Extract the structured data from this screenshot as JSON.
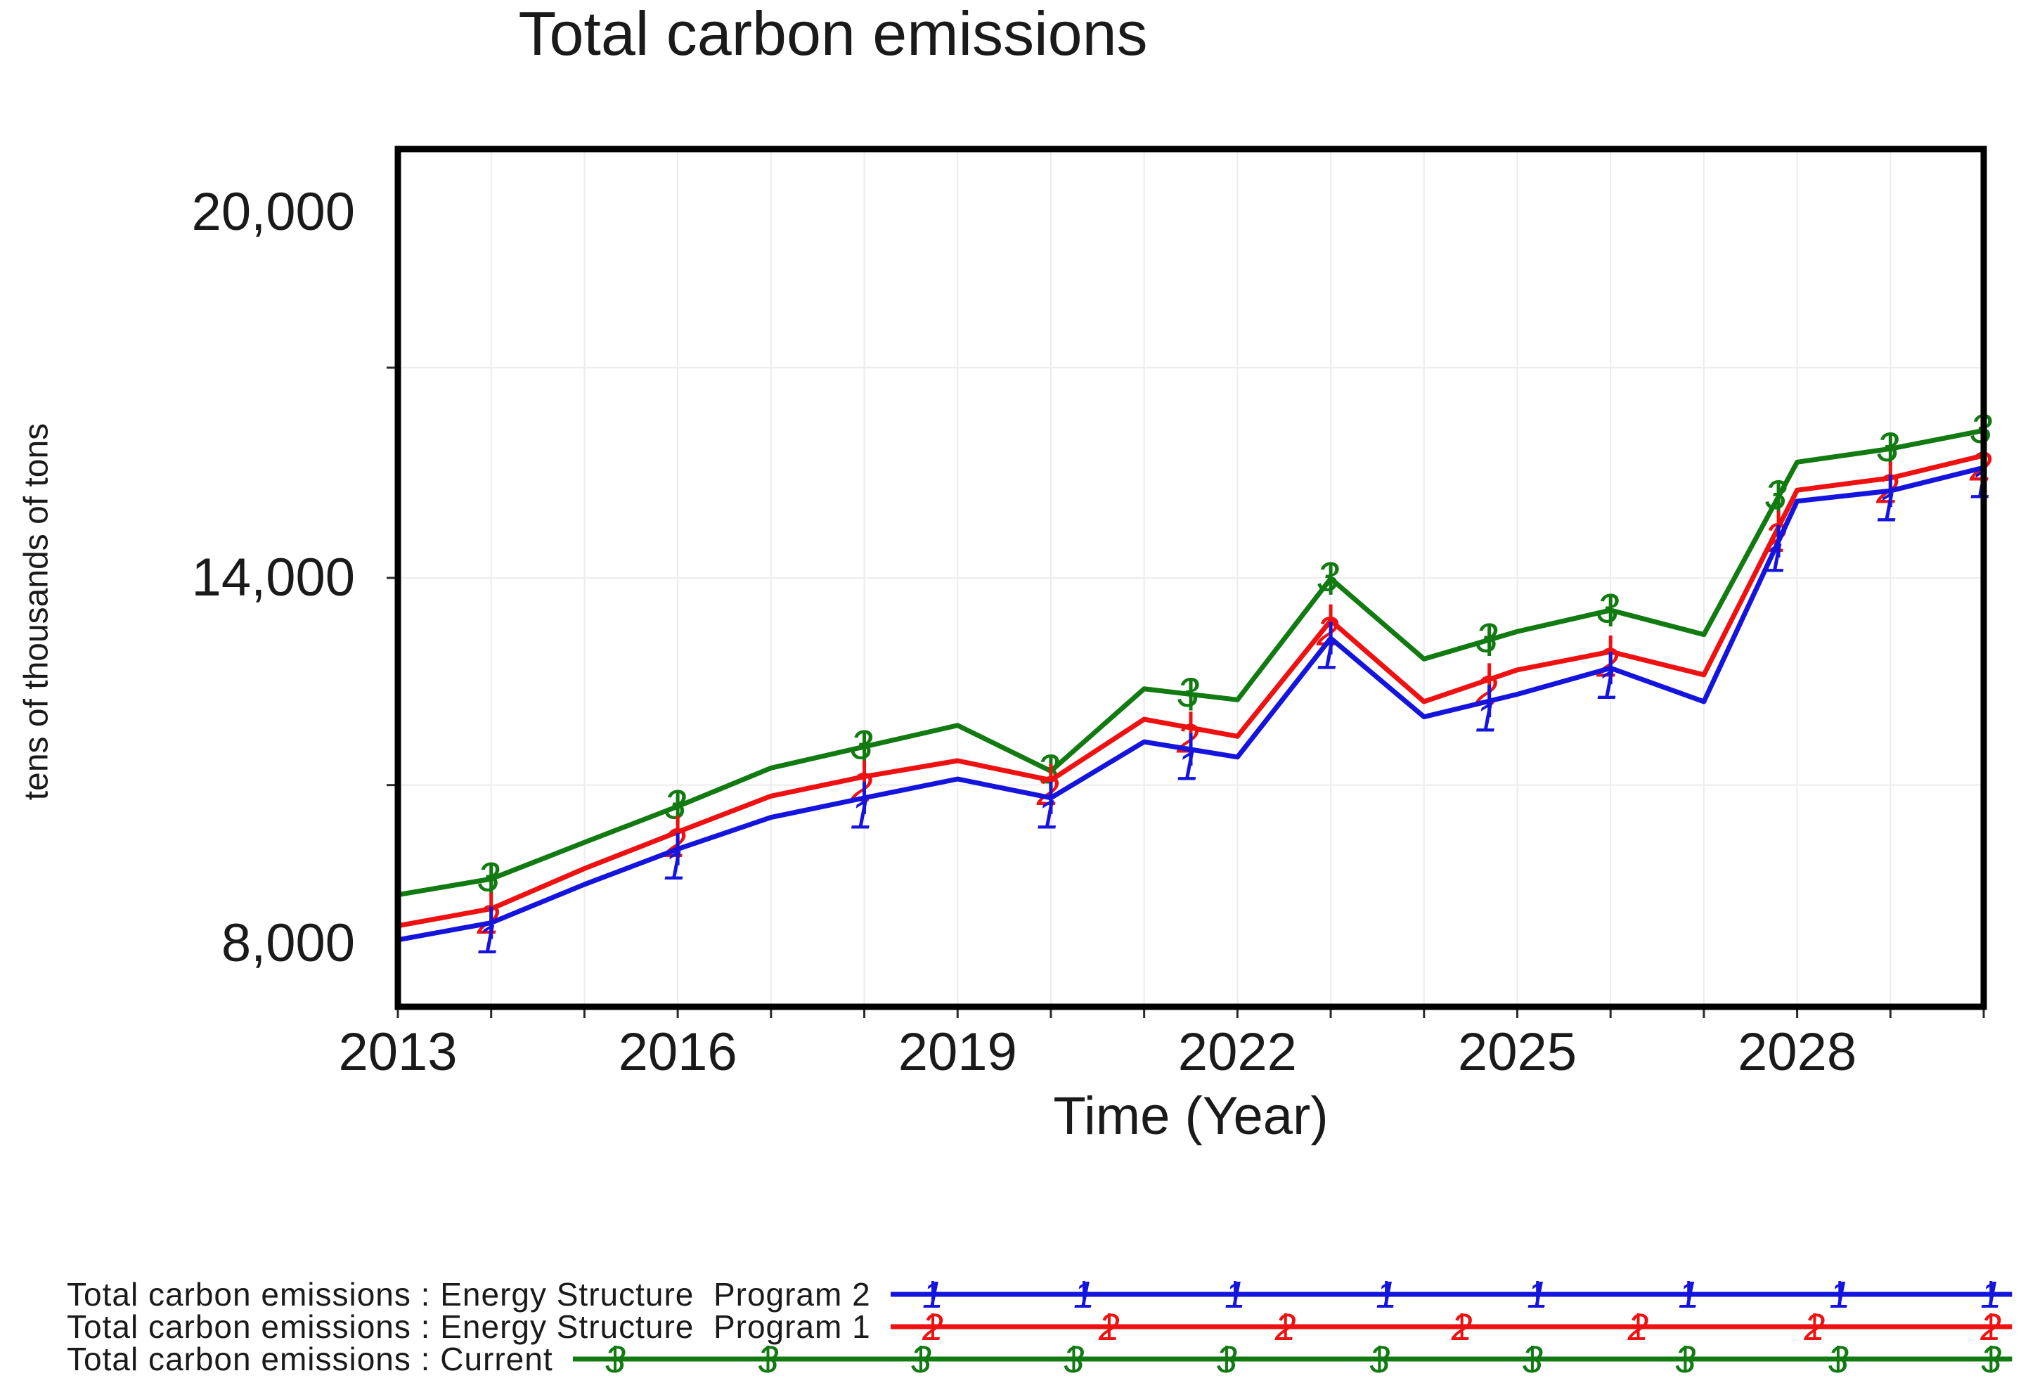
{
  "title": "Total carbon emissions",
  "y_axis": {
    "unit_label": "tens of thousands of tons",
    "ticks": [
      {
        "value": 20000,
        "label": "20,000"
      },
      {
        "value": 14000,
        "label": "14,000"
      },
      {
        "value": 8000,
        "label": "8,000"
      }
    ]
  },
  "x_axis": {
    "label": "Time (Year)",
    "ticks": [
      {
        "value": 2013,
        "label": "2013"
      },
      {
        "value": 2016,
        "label": "2016"
      },
      {
        "value": 2019,
        "label": "2019"
      },
      {
        "value": 2022,
        "label": "2022"
      },
      {
        "value": 2025,
        "label": "2025"
      },
      {
        "value": 2028,
        "label": "2028"
      }
    ]
  },
  "chart_data": {
    "type": "line",
    "x": [
      2013,
      2014,
      2015,
      2016,
      2017,
      2018,
      2019,
      2020,
      2021,
      2022,
      2023,
      2024,
      2025,
      2026,
      2027,
      2028,
      2029,
      2030
    ],
    "xlim": [
      2013,
      2030
    ],
    "ylim": [
      8000,
      20000
    ],
    "grid": {
      "vertical_gridlines_every_year": true,
      "horizontal_gridline_values": [
        10600,
        14000,
        17450
      ]
    },
    "marker_years": [
      2014,
      2016,
      2018,
      2020,
      2021.5,
      2023,
      2024.7,
      2026,
      2027.8,
      2029,
      2030
    ],
    "series": [
      {
        "name": "Energy Structure Program 2",
        "legend_label": "Total carbon emissions : Energy Structure  Program 2",
        "color": "#1414dd",
        "marker": "1",
        "legend_marker_count": 8,
        "values": [
          8060,
          8340,
          8970,
          9550,
          10070,
          10390,
          10700,
          10390,
          11310,
          11060,
          13010,
          11720,
          12090,
          12520,
          11970,
          15260,
          15430,
          15810
        ]
      },
      {
        "name": "Energy Structure Program 1",
        "legend_label": "Total carbon emissions : Energy Structure  Program 1",
        "color": "#ee1111",
        "marker": "2",
        "legend_marker_count": 7,
        "values": [
          8290,
          8570,
          9230,
          9830,
          10420,
          10740,
          11000,
          10680,
          11680,
          11400,
          13300,
          11970,
          12490,
          12790,
          12410,
          15440,
          15640,
          16010
        ]
      },
      {
        "name": "Current",
        "legend_label": "Total carbon emissions : Current",
        "color": "#117a11",
        "marker": "3",
        "legend_marker_count": 10,
        "values": [
          8800,
          9060,
          9660,
          10250,
          10880,
          11230,
          11580,
          10830,
          12180,
          12000,
          13990,
          12670,
          13120,
          13470,
          13070,
          15900,
          16120,
          16420
        ]
      }
    ]
  }
}
